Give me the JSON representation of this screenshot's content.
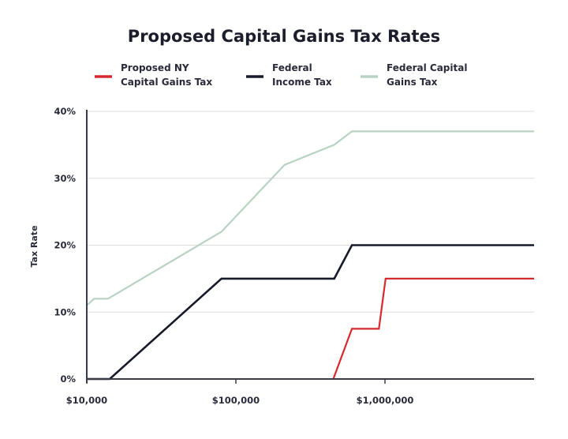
{
  "chart_data": {
    "type": "line",
    "title": "Proposed Capital Gains Tax Rates",
    "xlabel": "",
    "ylabel": "Tax Rate",
    "x_scale": "log",
    "xlim": [
      10000,
      10000000
    ],
    "ylim": [
      0,
      40
    ],
    "x_ticks": [
      10000,
      100000,
      1000000
    ],
    "x_tick_labels": [
      "$10,000",
      "$100,000",
      "$1,000,000"
    ],
    "y_ticks": [
      0,
      10,
      20,
      30,
      40
    ],
    "y_tick_labels": [
      "0%",
      "10%",
      "20%",
      "30%",
      "40%"
    ],
    "grid": "horizontal",
    "legend_position": "top",
    "series": [
      {
        "name": "Proposed NY Capital Gains Tax",
        "legend_lines": [
          "Proposed NY",
          "Capital Gains Tax"
        ],
        "color": "#d62a2f",
        "x": [
          450000,
          600000,
          910000,
          1010000,
          10000000
        ],
        "y": [
          0,
          7.5,
          7.5,
          15,
          15
        ]
      },
      {
        "name": "Federal Income Tax",
        "legend_lines": [
          "Federal",
          "Income Tax"
        ],
        "color": "#171a2b",
        "x": [
          10000,
          14250,
          80000,
          457000,
          600000,
          10000000
        ],
        "y": [
          0,
          0,
          15,
          15,
          20,
          20
        ]
      },
      {
        "name": "Federal Capital Gains Tax",
        "legend_lines": [
          "Federal Capital",
          "Gains Tax"
        ],
        "color": "#b9d3c3",
        "x": [
          10000,
          11200,
          13900,
          80000,
          212000,
          457000,
          600000,
          10000000
        ],
        "y": [
          11,
          12,
          12,
          22,
          32,
          35,
          37,
          37
        ]
      }
    ]
  }
}
